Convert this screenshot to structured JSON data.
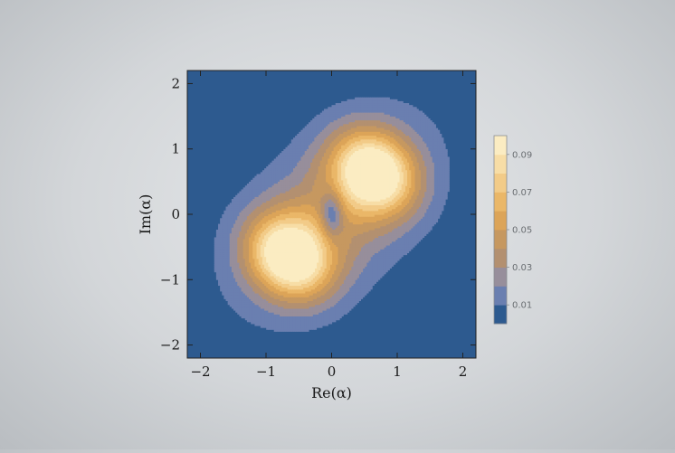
{
  "chart_data": {
    "type": "heatmap",
    "subtype": "filled-contour",
    "title": "",
    "xlabel": "Re(α)",
    "ylabel": "Im(α)",
    "xlim": [
      -2.2,
      2.2
    ],
    "ylim": [
      -2.2,
      2.2
    ],
    "xticks": [
      -2,
      -1,
      0,
      1,
      2
    ],
    "yticks": [
      -2,
      -1,
      0,
      1,
      2
    ],
    "xtick_labels": [
      "−2",
      "−1",
      "0",
      "1",
      "2"
    ],
    "ytick_labels": [
      "−2",
      "−1",
      "0",
      "1",
      "2"
    ],
    "grid": false,
    "legend_position": "right",
    "colorbar": {
      "levels": [
        0,
        0.01,
        0.02,
        0.03,
        0.04,
        0.05,
        0.06,
        0.07,
        0.08,
        0.09,
        0.1
      ],
      "tick_values": [
        0.01,
        0.03,
        0.05,
        0.07,
        0.09
      ],
      "tick_labels": [
        "0.01",
        "0.03",
        "0.05",
        "0.07",
        "0.09"
      ],
      "colors": [
        "#2d5a8f",
        "#6a7fb0",
        "#978e9b",
        "#b39070",
        "#c69860",
        "#dca458",
        "#eab768",
        "#f2cb88",
        "#f7dda6",
        "#fbecc2"
      ]
    },
    "peaks": [
      {
        "x": -0.7,
        "y": -0.6,
        "value": 0.1
      },
      {
        "x": 0.7,
        "y": 0.6,
        "value": 0.1
      }
    ],
    "minimum": {
      "x": 0,
      "y": 0,
      "value": 0.01
    }
  }
}
